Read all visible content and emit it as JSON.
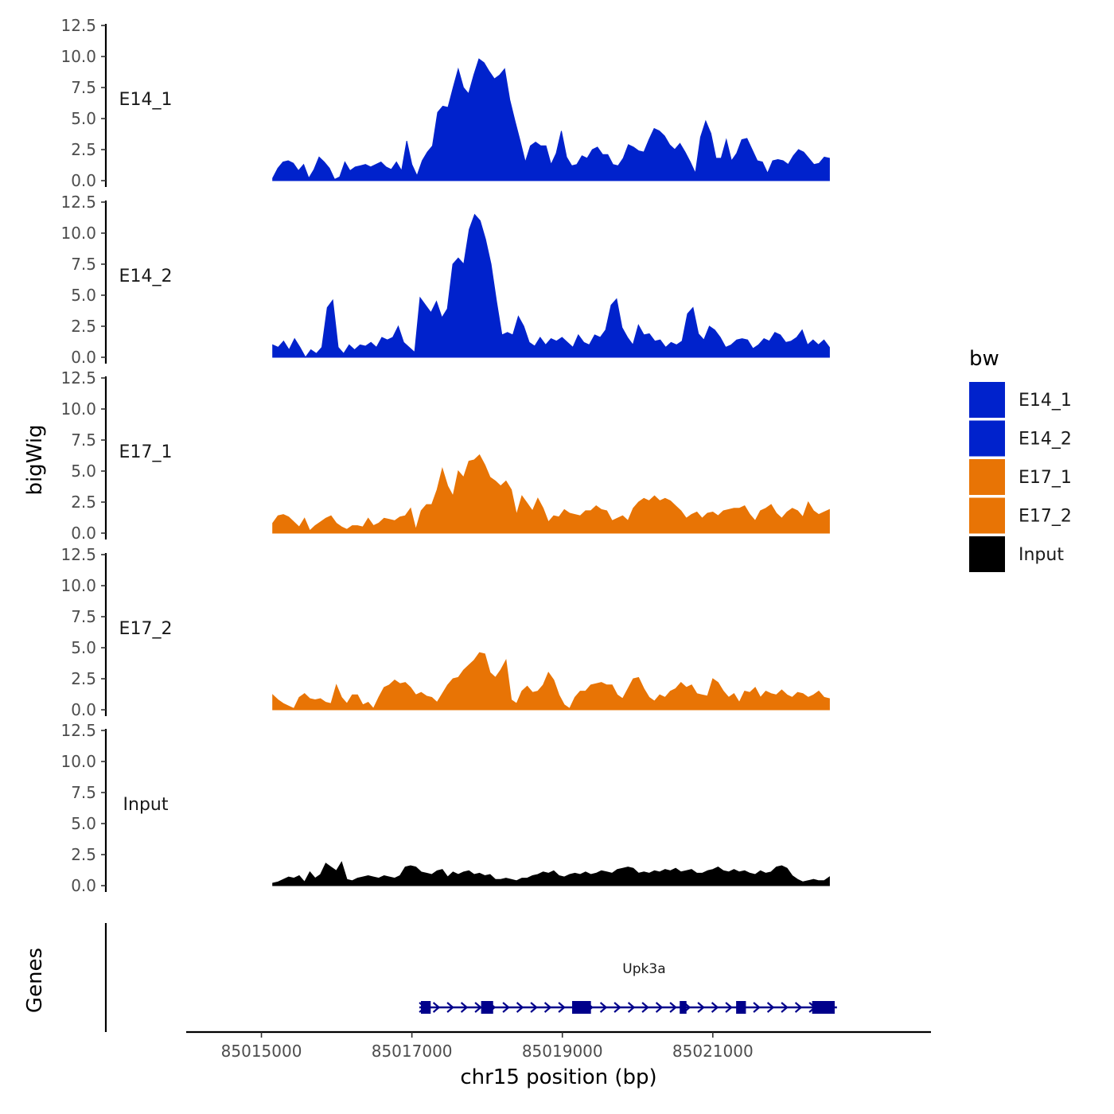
{
  "chart_data": {
    "type": "area",
    "title": "",
    "xlabel": "chr15 position (bp)",
    "ylabel": "bigWig",
    "genes_label": "Genes",
    "xlim": [
      85014000,
      85023900
    ],
    "x_range_data": [
      85015150,
      85022550
    ],
    "ylim": [
      0,
      12.5
    ],
    "y_ticks": [
      "0.0",
      "2.5",
      "5.0",
      "7.5",
      "10.0",
      "12.5"
    ],
    "x_ticks": [
      {
        "value": 85015000,
        "label": "85015000"
      },
      {
        "value": 85017000,
        "label": "85017000"
      },
      {
        "value": 85019000,
        "label": "85019000"
      },
      {
        "value": 85021000,
        "label": "85021000"
      }
    ],
    "legend": {
      "title": "bw",
      "entries": [
        {
          "label": "E14_1",
          "color": "#0022CC"
        },
        {
          "label": "E14_2",
          "color": "#0022CC"
        },
        {
          "label": "E17_1",
          "color": "#E87405"
        },
        {
          "label": "E17_2",
          "color": "#E87405"
        },
        {
          "label": "Input",
          "color": "#000000"
        }
      ]
    },
    "series": [
      {
        "name": "E14_1",
        "color": "#0022CC",
        "values": [
          0.2,
          1.0,
          1.5,
          1.6,
          1.4,
          0.8,
          1.3,
          0.2,
          0.9,
          1.9,
          1.5,
          1.0,
          0.1,
          0.3,
          1.5,
          0.8,
          1.1,
          1.2,
          1.3,
          1.1,
          1.3,
          1.5,
          1.1,
          0.9,
          1.5,
          0.8,
          3.2,
          1.3,
          0.4,
          1.6,
          2.3,
          2.8,
          5.5,
          6.0,
          5.9,
          7.5,
          9.0,
          7.5,
          7.0,
          8.5,
          9.8,
          9.5,
          8.8,
          8.2,
          8.5,
          9.0,
          6.5,
          4.8,
          3.2,
          1.5,
          2.8,
          3.1,
          2.8,
          2.8,
          1.3,
          2.2,
          4.0,
          1.9,
          1.2,
          1.3,
          2.0,
          1.8,
          2.5,
          2.7,
          2.1,
          2.1,
          1.3,
          1.2,
          1.8,
          2.9,
          2.7,
          2.4,
          2.3,
          3.3,
          4.2,
          4.0,
          3.6,
          2.9,
          2.5,
          3.0,
          2.3,
          1.5,
          0.6,
          3.5,
          4.8,
          3.8,
          1.8,
          1.8,
          3.3,
          1.6,
          2.2,
          3.3,
          3.4,
          2.5,
          1.6,
          1.5,
          0.6,
          1.6,
          1.7,
          1.6,
          1.3,
          2.0,
          2.5,
          2.3,
          1.8,
          1.3,
          1.4,
          1.9,
          1.8
        ]
      },
      {
        "name": "E14_2",
        "color": "#0022CC",
        "values": [
          1.0,
          0.8,
          1.3,
          0.6,
          1.5,
          0.8,
          0.0,
          0.6,
          0.3,
          0.8,
          4.0,
          4.6,
          0.8,
          0.3,
          1.0,
          0.6,
          1.0,
          0.9,
          1.2,
          0.8,
          1.6,
          1.4,
          1.6,
          2.5,
          1.2,
          0.8,
          0.4,
          4.8,
          4.2,
          3.6,
          4.5,
          3.2,
          3.9,
          7.5,
          8.0,
          7.5,
          10.3,
          11.5,
          11.0,
          9.5,
          7.5,
          4.5,
          1.8,
          2.0,
          1.8,
          3.3,
          2.5,
          1.2,
          0.9,
          1.6,
          1.0,
          1.5,
          1.3,
          1.6,
          1.2,
          0.8,
          1.8,
          1.2,
          1.0,
          1.8,
          1.6,
          2.2,
          4.2,
          4.7,
          2.4,
          1.6,
          1.0,
          2.6,
          1.8,
          1.9,
          1.3,
          1.4,
          0.8,
          1.2,
          1.0,
          1.3,
          3.5,
          4.0,
          1.9,
          1.4,
          2.5,
          2.2,
          1.6,
          0.8,
          1.0,
          1.4,
          1.5,
          1.4,
          0.7,
          1.0,
          1.5,
          1.3,
          2.0,
          1.8,
          1.2,
          1.3,
          1.6,
          2.2,
          1.0,
          1.4,
          1.0,
          1.4,
          0.8
        ]
      },
      {
        "name": "E17_1",
        "color": "#E87405",
        "values": [
          0.8,
          1.4,
          1.5,
          1.3,
          0.9,
          0.5,
          1.2,
          0.2,
          0.6,
          0.9,
          1.2,
          1.4,
          0.8,
          0.5,
          0.3,
          0.6,
          0.6,
          0.5,
          1.2,
          0.6,
          0.8,
          1.2,
          1.1,
          1.0,
          1.3,
          1.4,
          2.0,
          0.3,
          1.8,
          2.3,
          2.3,
          3.5,
          5.2,
          3.8,
          3.0,
          5.0,
          4.5,
          5.8,
          5.9,
          6.3,
          5.5,
          4.5,
          4.2,
          3.8,
          4.2,
          3.5,
          1.5,
          3.0,
          2.4,
          1.8,
          2.8,
          2.0,
          0.9,
          1.4,
          1.3,
          1.9,
          1.6,
          1.5,
          1.4,
          1.8,
          1.8,
          2.2,
          1.9,
          1.8,
          1.0,
          1.2,
          1.4,
          1.0,
          2.0,
          2.5,
          2.8,
          2.6,
          3.0,
          2.6,
          2.8,
          2.6,
          2.2,
          1.8,
          1.2,
          1.5,
          1.7,
          1.2,
          1.6,
          1.7,
          1.4,
          1.8,
          1.9,
          2.0,
          2.0,
          2.2,
          1.5,
          1.0,
          1.8,
          2.0,
          2.3,
          1.6,
          1.2,
          1.7,
          2.0,
          1.8,
          1.3,
          2.5,
          1.8,
          1.5,
          1.7,
          1.9
        ]
      },
      {
        "name": "E17_2",
        "color": "#E87405",
        "values": [
          1.2,
          0.8,
          0.5,
          0.3,
          0.1,
          1.0,
          1.3,
          0.9,
          0.8,
          0.9,
          0.6,
          0.5,
          2.0,
          1.0,
          0.5,
          1.2,
          1.2,
          0.4,
          0.6,
          0.1,
          1.0,
          1.8,
          2.0,
          2.4,
          2.1,
          2.2,
          1.8,
          1.2,
          1.4,
          1.1,
          1.0,
          0.6,
          1.3,
          2.0,
          2.5,
          2.6,
          3.2,
          3.6,
          4.0,
          4.6,
          4.5,
          3.0,
          2.6,
          3.2,
          4.0,
          0.8,
          0.5,
          1.5,
          1.9,
          1.4,
          1.5,
          2.0,
          3.0,
          2.4,
          1.2,
          0.4,
          0.1,
          1.0,
          1.5,
          1.5,
          2.0,
          2.1,
          2.2,
          2.0,
          2.0,
          1.2,
          0.9,
          1.7,
          2.5,
          2.6,
          1.7,
          1.0,
          0.7,
          1.2,
          1.0,
          1.5,
          1.7,
          2.2,
          1.8,
          2.0,
          1.3,
          1.2,
          1.1,
          2.5,
          2.2,
          1.5,
          1.0,
          1.3,
          0.6,
          1.5,
          1.4,
          1.8,
          1.0,
          1.5,
          1.3,
          1.2,
          1.6,
          1.2,
          1.0,
          1.4,
          1.3,
          1.0,
          1.2,
          1.5,
          1.0,
          0.9
        ]
      },
      {
        "name": "Input",
        "color": "#000000",
        "values": [
          0.2,
          0.3,
          0.5,
          0.7,
          0.6,
          0.8,
          0.3,
          1.1,
          0.6,
          0.9,
          1.8,
          1.5,
          1.2,
          1.9,
          0.5,
          0.4,
          0.6,
          0.7,
          0.8,
          0.7,
          0.6,
          0.8,
          0.7,
          0.6,
          0.8,
          1.5,
          1.6,
          1.5,
          1.1,
          1.0,
          0.9,
          1.2,
          1.3,
          0.7,
          1.1,
          0.9,
          1.1,
          1.2,
          0.9,
          1.0,
          0.8,
          0.9,
          0.5,
          0.5,
          0.6,
          0.5,
          0.4,
          0.6,
          0.6,
          0.8,
          0.9,
          1.1,
          1.0,
          1.2,
          0.8,
          0.7,
          0.9,
          1.0,
          0.9,
          1.1,
          0.9,
          1.0,
          1.2,
          1.1,
          1.0,
          1.3,
          1.4,
          1.5,
          1.4,
          1.0,
          1.1,
          1.0,
          1.2,
          1.1,
          1.3,
          1.2,
          1.4,
          1.1,
          1.2,
          1.3,
          1.0,
          1.0,
          1.2,
          1.3,
          1.5,
          1.2,
          1.1,
          1.3,
          1.1,
          1.2,
          1.0,
          0.9,
          1.2,
          1.0,
          1.1,
          1.5,
          1.6,
          1.4,
          0.8,
          0.5,
          0.3,
          0.4,
          0.5,
          0.4,
          0.4,
          0.7
        ]
      }
    ],
    "gene": {
      "name": "Upk3a",
      "color": "#00008B",
      "strand": "+",
      "start": 85017100,
      "end": 85022650,
      "exons": [
        [
          85017120,
          85017250
        ],
        [
          85017920,
          85018080
        ],
        [
          85019130,
          85019380
        ],
        [
          85020560,
          85020650
        ],
        [
          85021310,
          85021440
        ],
        [
          85022320,
          85022620
        ]
      ]
    }
  }
}
